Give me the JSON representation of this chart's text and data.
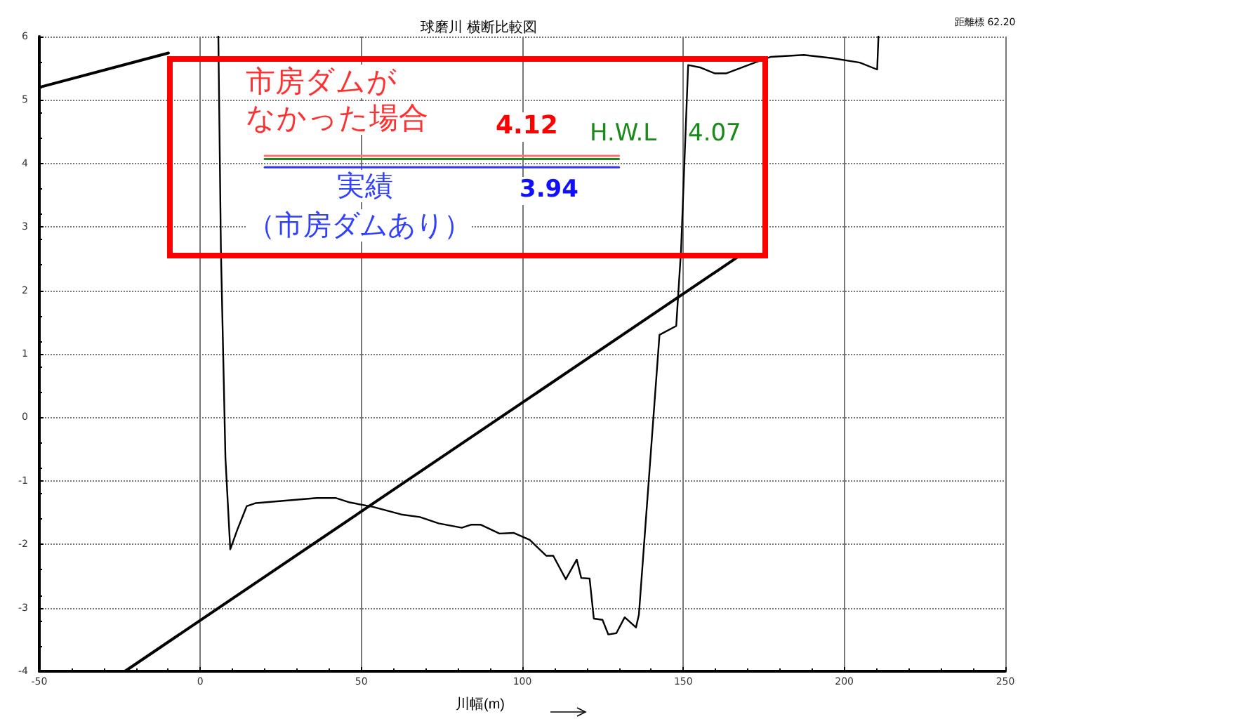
{
  "chart_data": {
    "type": "line",
    "title": "球磨川 横断比較図",
    "xlabel": "川幅(m)",
    "annotations": [
      "距離標 62.20",
      "市房ダムが",
      "なかった場合",
      "4.12",
      "H.W.L",
      "4.07",
      "実績",
      "（市房ダムあり）",
      "3.94"
    ],
    "xlim": [
      -50,
      250
    ],
    "xticks": [
      -50,
      0,
      50,
      100,
      150,
      200,
      250
    ],
    "ylim": [
      -4,
      6
    ],
    "yticks": [
      -4,
      -3,
      -2,
      -1,
      0,
      1,
      2,
      3,
      4,
      5,
      6
    ],
    "grid": true,
    "marker": "none",
    "line_style": "solid",
    "series": [
      {
        "color": "#000000",
        "x": [
          5.6,
          6.4,
          7.8,
          9.3,
          11.5,
          14.4,
          17.3,
          36.2,
          42.0,
          46.4,
          53.6,
          62.4,
          68.2,
          74.0,
          81.2,
          84.2,
          87.0,
          92.9,
          97.3,
          102.3,
          107.4,
          109.6,
          113.5,
          116.9,
          118.3,
          120.9,
          122.2,
          124.9,
          126.7,
          129.2,
          131.8,
          135.3,
          136.2,
          142.6,
          147.8,
          149.3,
          151.5,
          155.4,
          159.7,
          163.4,
          172.8,
          177.2,
          187.4,
          196.1,
          204.8,
          210.2,
          210.6
        ],
        "values": [
          6.0,
          2.63,
          -0.64,
          -2.08,
          -1.77,
          -1.4,
          -1.35,
          -1.27,
          -1.27,
          -1.34,
          -1.41,
          -1.53,
          -1.57,
          -1.67,
          -1.74,
          -1.69,
          -1.69,
          -1.83,
          -1.82,
          -1.93,
          -2.18,
          -2.18,
          -2.55,
          -2.24,
          -2.53,
          -2.54,
          -3.17,
          -3.19,
          -3.42,
          -3.4,
          -3.15,
          -3.31,
          -3.11,
          1.3,
          1.44,
          2.64,
          5.55,
          5.51,
          5.42,
          5.42,
          5.6,
          5.68,
          5.71,
          5.66,
          5.59,
          5.48,
          6.0
        ]
      },
      {
        "color": "#000000",
        "x": [
          -23.4,
          167.0
        ],
        "values": [
          -4.0,
          2.53
        ]
      },
      {
        "color": "#000000",
        "x": [
          -50,
          -9.9
        ],
        "values": [
          5.2,
          5.74
        ]
      },
      {
        "color": "#ff7070",
        "x": [
          20,
          130
        ],
        "values": [
          4.12,
          4.12
        ]
      },
      {
        "color": "#1a8a1a",
        "x": [
          20,
          130
        ],
        "values": [
          4.07,
          4.07
        ]
      },
      {
        "color": "#3030ff",
        "x": [
          20,
          130
        ],
        "values": [
          3.94,
          3.94
        ]
      }
    ]
  }
}
